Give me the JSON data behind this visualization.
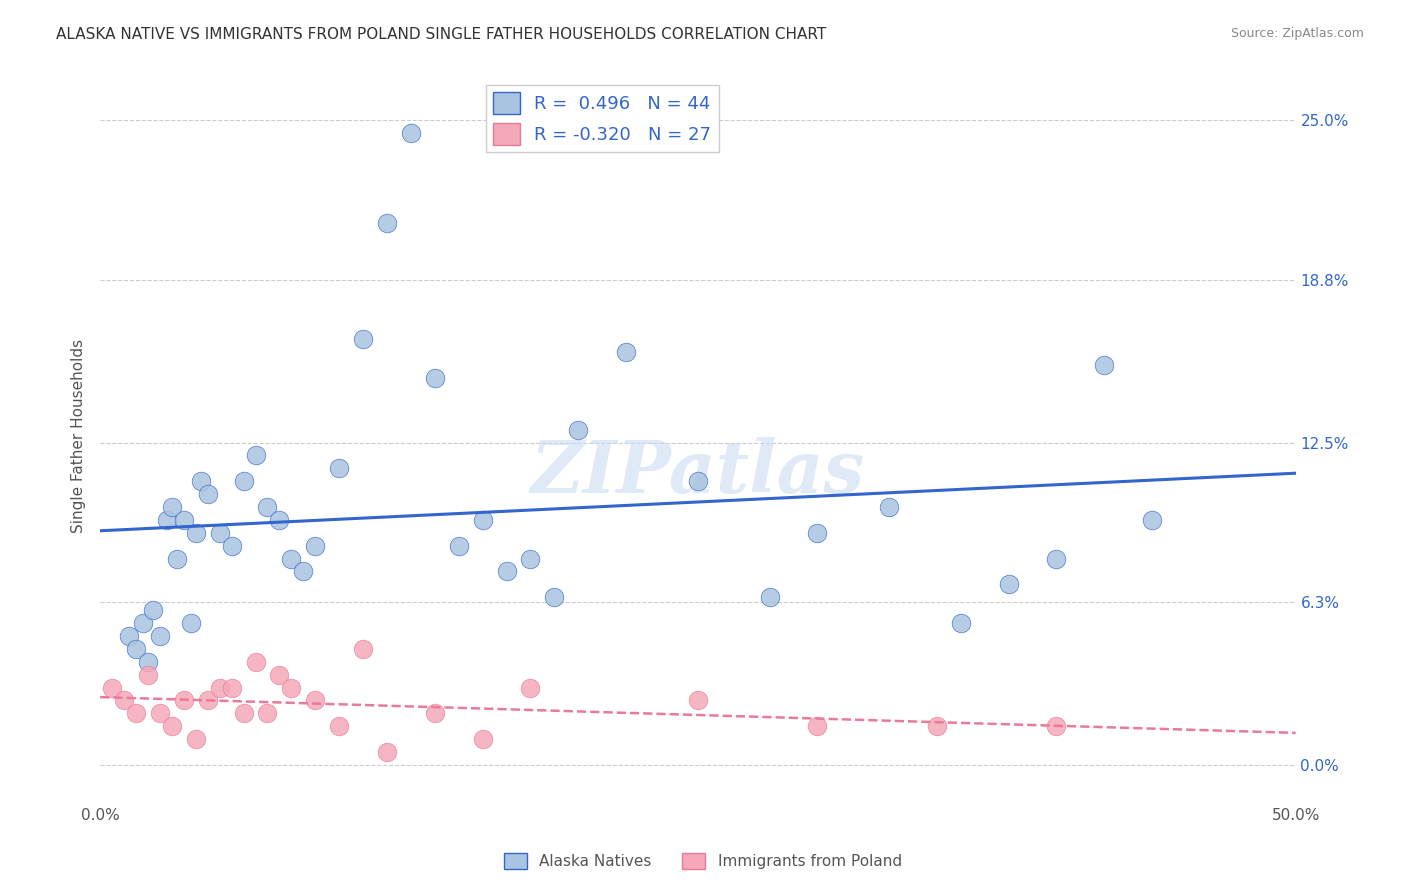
{
  "title": "ALASKA NATIVE VS IMMIGRANTS FROM POLAND SINGLE FATHER HOUSEHOLDS CORRELATION CHART",
  "source": "Source: ZipAtlas.com",
  "ylabel_label": "Single Father Households",
  "ytick_values": [
    0.0,
    6.3,
    12.5,
    18.8,
    25.0
  ],
  "xlim": [
    0.0,
    50.0
  ],
  "ylim": [
    -1.5,
    27.0
  ],
  "blue_r": 0.496,
  "blue_n": 44,
  "pink_r": -0.32,
  "pink_n": 27,
  "blue_color": "#a8c4e0",
  "pink_color": "#f4a8b8",
  "blue_line_color": "#3366cc",
  "pink_line_color": "#e87a9a",
  "background_color": "#ffffff",
  "watermark": "ZIPatlas",
  "blue_x": [
    1.2,
    1.5,
    1.8,
    2.0,
    2.2,
    2.5,
    2.8,
    3.0,
    3.2,
    3.5,
    3.8,
    4.0,
    4.2,
    4.5,
    5.0,
    5.5,
    6.0,
    6.5,
    7.0,
    7.5,
    8.0,
    8.5,
    9.0,
    10.0,
    11.0,
    12.0,
    13.0,
    14.0,
    15.0,
    16.0,
    17.0,
    18.0,
    19.0,
    20.0,
    22.0,
    25.0,
    28.0,
    30.0,
    33.0,
    36.0,
    38.0,
    40.0,
    42.0,
    44.0
  ],
  "blue_y": [
    5.0,
    4.5,
    5.5,
    4.0,
    6.0,
    5.0,
    9.5,
    10.0,
    8.0,
    9.5,
    5.5,
    9.0,
    11.0,
    10.5,
    9.0,
    8.5,
    11.0,
    12.0,
    10.0,
    9.5,
    8.0,
    7.5,
    8.5,
    11.5,
    16.5,
    21.0,
    24.5,
    15.0,
    8.5,
    9.5,
    7.5,
    8.0,
    6.5,
    13.0,
    16.0,
    11.0,
    6.5,
    9.0,
    10.0,
    5.5,
    7.0,
    8.0,
    15.5,
    9.5
  ],
  "pink_x": [
    0.5,
    1.0,
    1.5,
    2.0,
    2.5,
    3.0,
    3.5,
    4.0,
    4.5,
    5.0,
    5.5,
    6.0,
    6.5,
    7.0,
    7.5,
    8.0,
    9.0,
    10.0,
    11.0,
    12.0,
    14.0,
    16.0,
    18.0,
    25.0,
    30.0,
    35.0,
    40.0
  ],
  "pink_y": [
    3.0,
    2.5,
    2.0,
    3.5,
    2.0,
    1.5,
    2.5,
    1.0,
    2.5,
    3.0,
    3.0,
    2.0,
    4.0,
    2.0,
    3.5,
    3.0,
    2.5,
    1.5,
    4.5,
    0.5,
    2.0,
    1.0,
    3.0,
    2.5,
    1.5,
    1.5,
    1.5
  ]
}
